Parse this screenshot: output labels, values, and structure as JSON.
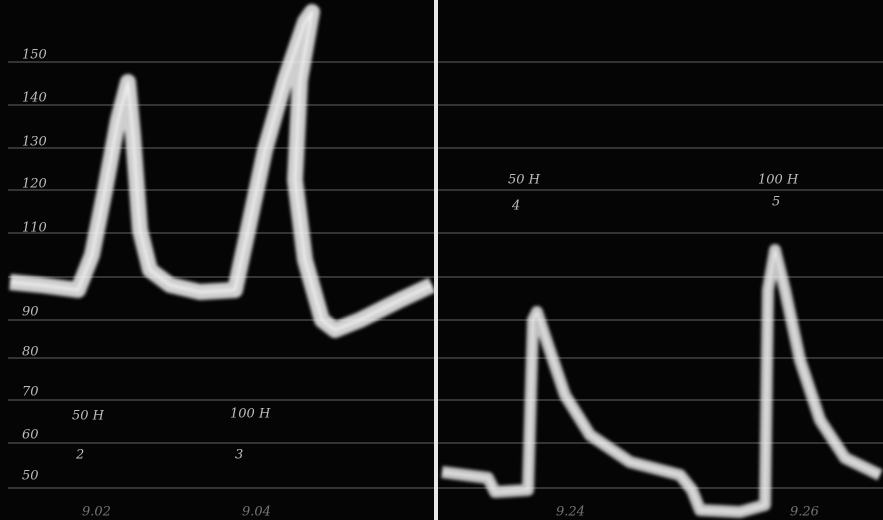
{
  "left_panel": {
    "scale_labels": [
      "150",
      "140",
      "130",
      "120",
      "110",
      "90",
      "80",
      "70",
      "60",
      "50"
    ],
    "markers": [
      {
        "label": "50 H",
        "number": "2"
      },
      {
        "label": "100 H",
        "number": "3"
      }
    ],
    "times": [
      "9.02",
      "9.04"
    ]
  },
  "right_panel": {
    "markers": [
      {
        "label": "50 H",
        "number": "4"
      },
      {
        "label": "100 H",
        "number": "5"
      }
    ],
    "times": [
      "9.24",
      "9.26"
    ]
  }
}
